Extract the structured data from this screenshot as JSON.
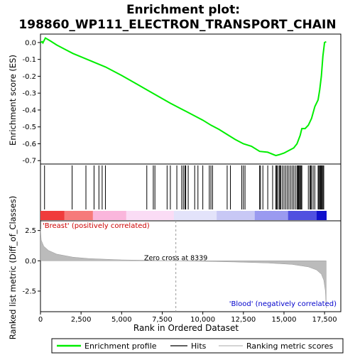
{
  "chart_data": {
    "type": "line",
    "title": "Enrichment plot:\n198860_WP111_ELECTRON_TRANSPORT_CHAIN",
    "xlabel": "Rank in Ordered Dataset",
    "xlim": [
      0,
      18500
    ],
    "x_ticks": [
      0,
      2500,
      5000,
      7500,
      10000,
      12500,
      15000,
      17500
    ],
    "x_tick_labels": [
      "0",
      "2,500",
      "5,000",
      "7,500",
      "10,000",
      "12,500",
      "15,000",
      "17,500"
    ],
    "n_genes": 17600,
    "es_panel": {
      "ylabel": "Enrichment score (ES)",
      "ylim": [
        -0.72,
        0.05
      ],
      "y_ticks": [
        0.0,
        -0.1,
        -0.2,
        -0.3,
        -0.4,
        -0.5,
        -0.6,
        -0.7
      ],
      "y_tick_labels": [
        "0.0",
        "-0.1",
        "-0.2",
        "-0.3",
        "-0.4",
        "-0.5",
        "-0.6",
        "-0.7"
      ],
      "line_color": "#00ee00",
      "profile": [
        [
          0,
          0.0
        ],
        [
          100,
          0.005
        ],
        [
          150,
          -0.002
        ],
        [
          300,
          0.027
        ],
        [
          600,
          0.01
        ],
        [
          1000,
          -0.015
        ],
        [
          1500,
          -0.04
        ],
        [
          2000,
          -0.065
        ],
        [
          2500,
          -0.085
        ],
        [
          3000,
          -0.105
        ],
        [
          3500,
          -0.125
        ],
        [
          4000,
          -0.145
        ],
        [
          5000,
          -0.195
        ],
        [
          6000,
          -0.25
        ],
        [
          7000,
          -0.305
        ],
        [
          8000,
          -0.36
        ],
        [
          9000,
          -0.41
        ],
        [
          10000,
          -0.46
        ],
        [
          10500,
          -0.49
        ],
        [
          11000,
          -0.515
        ],
        [
          11500,
          -0.545
        ],
        [
          12000,
          -0.575
        ],
        [
          12500,
          -0.6
        ],
        [
          13000,
          -0.615
        ],
        [
          13500,
          -0.645
        ],
        [
          14000,
          -0.65
        ],
        [
          14500,
          -0.67
        ],
        [
          14700,
          -0.665
        ],
        [
          15000,
          -0.655
        ],
        [
          15300,
          -0.64
        ],
        [
          15600,
          -0.625
        ],
        [
          15800,
          -0.6
        ],
        [
          16000,
          -0.55
        ],
        [
          16100,
          -0.51
        ],
        [
          16300,
          -0.51
        ],
        [
          16500,
          -0.49
        ],
        [
          16700,
          -0.45
        ],
        [
          16900,
          -0.38
        ],
        [
          17100,
          -0.34
        ],
        [
          17200,
          -0.28
        ],
        [
          17300,
          -0.2
        ],
        [
          17400,
          -0.08
        ],
        [
          17500,
          0.0
        ],
        [
          17600,
          0.005
        ]
      ]
    },
    "hits": [
      250,
      1950,
      2800,
      3300,
      3600,
      3800,
      4000,
      6550,
      6950,
      7050,
      7800,
      8000,
      8400,
      8700,
      8800,
      8900,
      8950,
      9100,
      9500,
      9700,
      10000,
      10400,
      10500,
      10600,
      11500,
      11700,
      12400,
      12500,
      12600,
      13500,
      13550,
      13700,
      14000,
      14300,
      14500,
      14550,
      14600,
      14700,
      14750,
      14800,
      14900,
      15000,
      15100,
      15200,
      15300,
      15400,
      15500,
      15600,
      15700,
      15800,
      15850,
      15900,
      15950,
      16000,
      16050,
      16100,
      16500,
      16600,
      16650,
      16700,
      16800,
      16900,
      17100,
      17150,
      17200,
      17250,
      17300,
      17350,
      17400,
      17450
    ],
    "metric_panel": {
      "ylabel": "Ranked list metric (Diff_of_Classes)",
      "ylim": [
        -4.2,
        3.3
      ],
      "y_ticks": [
        2.5,
        0.0,
        -2.5
      ],
      "y_tick_labels": [
        "2.5",
        "0.0",
        "-2.5"
      ],
      "curve": [
        [
          0,
          2.6
        ],
        [
          50,
          1.7
        ],
        [
          200,
          1.2
        ],
        [
          500,
          0.85
        ],
        [
          1000,
          0.55
        ],
        [
          2000,
          0.3
        ],
        [
          3000,
          0.18
        ],
        [
          5000,
          0.08
        ],
        [
          7000,
          0.03
        ],
        [
          8339,
          0.0
        ],
        [
          10000,
          -0.04
        ],
        [
          12000,
          -0.1
        ],
        [
          14000,
          -0.18
        ],
        [
          15500,
          -0.3
        ],
        [
          16500,
          -0.5
        ],
        [
          17000,
          -0.75
        ],
        [
          17300,
          -1.1
        ],
        [
          17450,
          -1.6
        ],
        [
          17550,
          -2.5
        ],
        [
          17600,
          -3.9
        ]
      ],
      "zero_cross_label": "Zero cross at 8339",
      "zero_cross": 8339,
      "pos_label": "'Breast' (positively correlated)",
      "neg_label": "'Blood' (negatively correlated)"
    },
    "legend": {
      "placement": "bottom",
      "entries": [
        {
          "label": "Enrichment profile",
          "color": "#00ee00"
        },
        {
          "label": "Hits",
          "color": "#000000"
        },
        {
          "label": "Ranking metric scores",
          "color": "#bbbbbb"
        }
      ]
    }
  }
}
